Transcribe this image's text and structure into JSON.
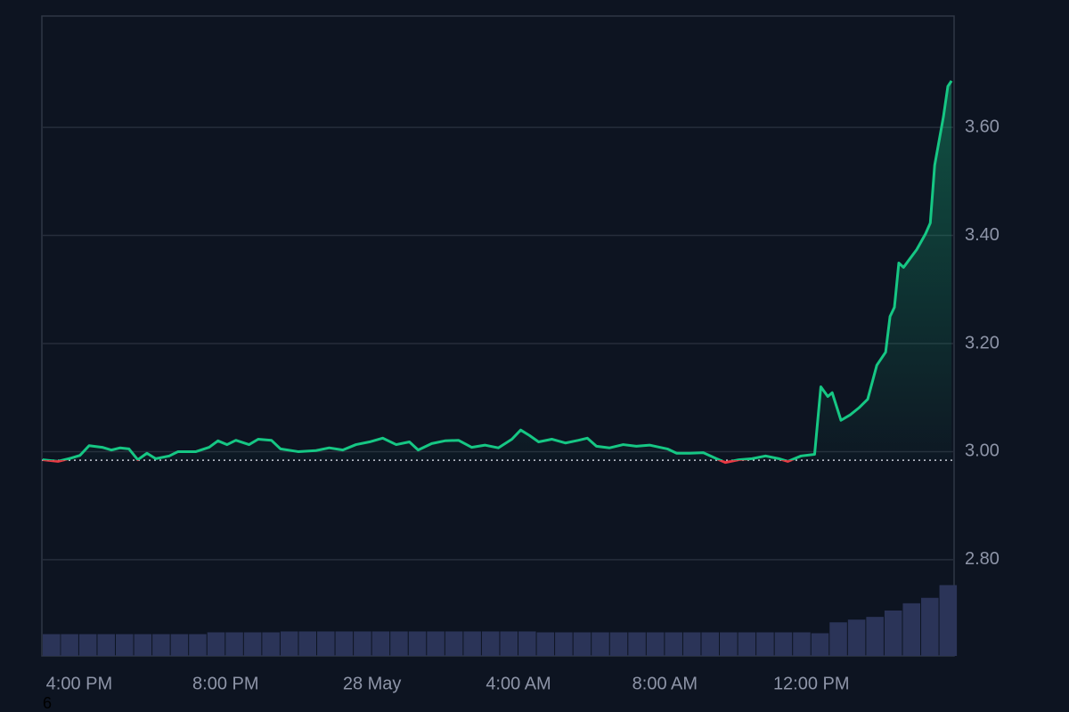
{
  "chart_data": {
    "type": "line",
    "x": [
      -1.0,
      -0.58,
      -0.22,
      0.02,
      0.27,
      0.63,
      0.88,
      1.12,
      1.36,
      1.6,
      1.85,
      2.09,
      2.46,
      2.7,
      3.19,
      3.55,
      3.79,
      4.04,
      4.28,
      4.64,
      4.89,
      5.25,
      5.5,
      5.98,
      6.47,
      6.83,
      7.2,
      7.56,
      7.93,
      8.29,
      8.66,
      9.02,
      9.26,
      9.63,
      9.99,
      10.36,
      10.72,
      11.09,
      11.45,
      11.82,
      12.06,
      12.3,
      12.55,
      12.91,
      13.28,
      13.64,
      13.88,
      14.13,
      14.49,
      14.86,
      15.22,
      15.59,
      16.07,
      16.32,
      16.68,
      17.05,
      17.41,
      17.65,
      18.02,
      18.38,
      18.75,
      19.11,
      19.36,
      19.72,
      20.09,
      20.26,
      20.45,
      20.57,
      20.81,
      21.06,
      21.3,
      21.54,
      21.79,
      22.03,
      22.15,
      22.27,
      22.39,
      22.52,
      22.64,
      22.88,
      23.12,
      23.25,
      23.37,
      23.61,
      23.73,
      23.83
    ],
    "values": [
      2.985,
      2.982,
      2.988,
      2.993,
      3.011,
      3.008,
      3.003,
      3.007,
      3.005,
      2.985,
      2.997,
      2.987,
      2.992,
      3.0,
      3.0,
      3.008,
      3.02,
      3.013,
      3.021,
      3.013,
      3.023,
      3.021,
      3.005,
      3.0,
      3.002,
      3.007,
      3.003,
      3.013,
      3.018,
      3.025,
      3.013,
      3.018,
      3.003,
      3.015,
      3.02,
      3.021,
      3.008,
      3.012,
      3.007,
      3.023,
      3.04,
      3.03,
      3.018,
      3.023,
      3.016,
      3.021,
      3.025,
      3.01,
      3.007,
      3.013,
      3.01,
      3.012,
      3.005,
      2.997,
      2.997,
      2.998,
      2.987,
      2.98,
      2.985,
      2.987,
      2.992,
      2.987,
      2.982,
      2.992,
      2.995,
      3.12,
      3.102,
      3.109,
      3.058,
      3.068,
      3.081,
      3.097,
      3.16,
      3.184,
      3.25,
      3.267,
      3.349,
      3.341,
      3.352,
      3.374,
      3.403,
      3.423,
      3.53,
      3.62,
      3.676,
      3.686
    ],
    "color": "#16c784",
    "down_color": "#ea3943",
    "baseline": 2.984,
    "xlim": [
      -1.02,
      23.9
    ],
    "xticks": [
      {
        "value": 0,
        "label": "4:00 PM"
      },
      {
        "value": 4,
        "label": "8:00 PM"
      },
      {
        "value": 8,
        "label": "28 May"
      },
      {
        "value": 12,
        "label": "4:00 AM"
      },
      {
        "value": 16,
        "label": "8:00 AM"
      },
      {
        "value": 20,
        "label": "12:00 PM"
      }
    ],
    "ylim": [
      2.622,
      3.806
    ],
    "yticks": [
      {
        "value": 2.8,
        "label": "2.80"
      },
      {
        "value": 3.0,
        "label": "3.00"
      },
      {
        "value": 3.2,
        "label": "3.20"
      },
      {
        "value": 3.4,
        "label": "3.40"
      },
      {
        "value": 3.6,
        "label": "3.60"
      }
    ],
    "grid": true,
    "volume": {
      "color": "#2b3458",
      "vlim": [
        0,
        100
      ],
      "x": [
        -1,
        -0.5,
        0,
        0.5,
        1,
        1.5,
        2,
        2.5,
        3,
        3.5,
        4,
        4.5,
        5,
        5.5,
        6,
        6.5,
        7,
        7.5,
        8,
        8.5,
        9,
        9.5,
        10,
        10.5,
        11,
        11.5,
        12,
        12.5,
        13,
        13.5,
        14,
        14.5,
        15,
        15.5,
        16,
        16.5,
        17,
        17.5,
        18,
        18.5,
        19,
        19.5,
        20,
        20.5,
        21,
        21.5,
        22,
        22.5,
        23,
        23.5
      ],
      "values": [
        24,
        24,
        24,
        24,
        24,
        24,
        24,
        24,
        24,
        26,
        26,
        26,
        26,
        27,
        27,
        27,
        27,
        27,
        27,
        27,
        27,
        27,
        27,
        27,
        27,
        27,
        27,
        26,
        26,
        26,
        26,
        26,
        26,
        26,
        26,
        26,
        26,
        26,
        26,
        26,
        26,
        26,
        25,
        37,
        40,
        43,
        50,
        58,
        64,
        78
      ]
    },
    "annotation": "6"
  }
}
